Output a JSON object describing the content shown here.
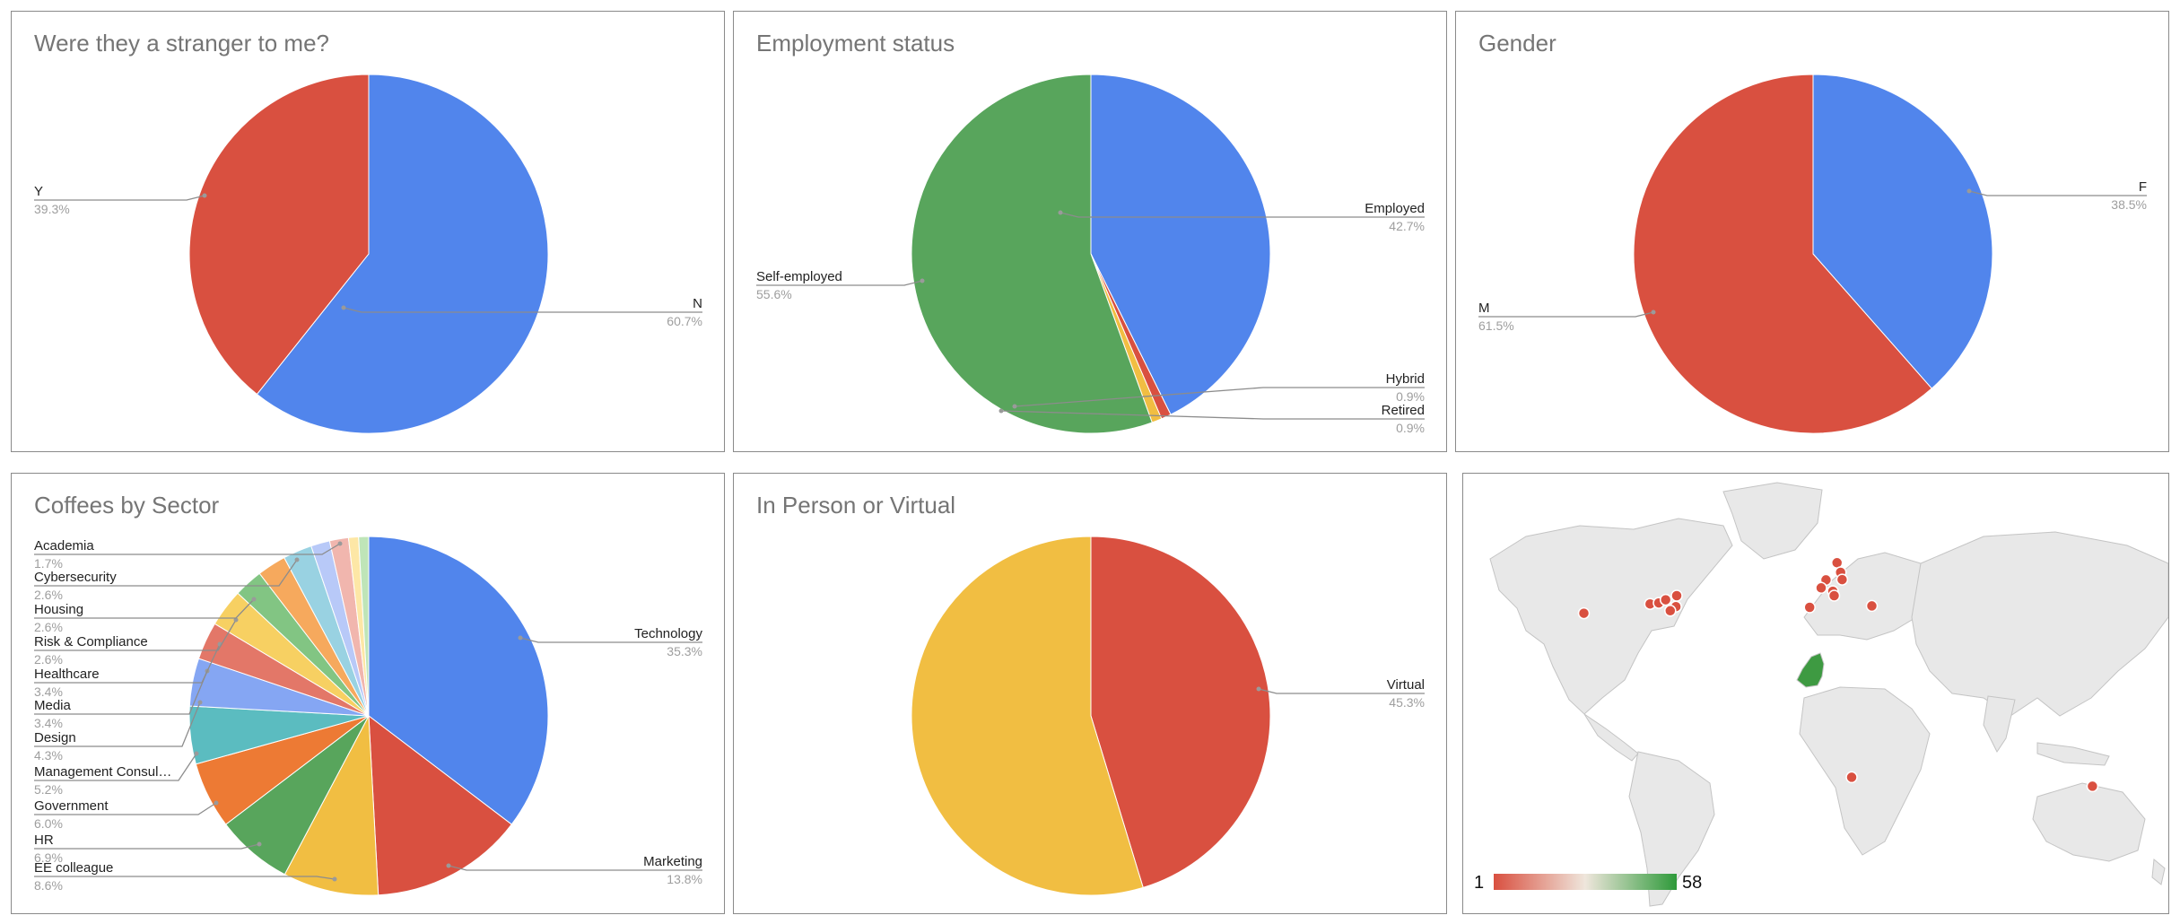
{
  "colors": {
    "blue": "#5185ec",
    "red": "#d95040",
    "yellow": "#f1be42",
    "green": "#58a55c",
    "orange": "#ed7a34",
    "teal": "#5bbcc0",
    "lightblue": "#85a6f3",
    "salmon": "#e37768",
    "gold": "#f7d062",
    "mint": "#82c583",
    "lightorange": "#f6a95d",
    "skyblue": "#99d2e2",
    "lavender": "#b8c9f8",
    "pink": "#f1b6ae",
    "paleyellow": "#fde7a6",
    "palegreen": "#bfe5b8"
  },
  "chart_data": [
    {
      "type": "pie",
      "title": "Were they a stranger to me?",
      "slices": [
        {
          "label": "N",
          "percent_label": "60.7%",
          "value": 60.7,
          "color": "#5185ec"
        },
        {
          "label": "Y",
          "percent_label": "39.3%",
          "value": 39.3,
          "color": "#d95040"
        }
      ]
    },
    {
      "type": "pie",
      "title": "Employment status",
      "slices": [
        {
          "label": "Employed",
          "percent_label": "42.7%",
          "value": 42.7,
          "color": "#5185ec"
        },
        {
          "label": "Hybrid",
          "percent_label": "0.9%",
          "value": 0.9,
          "color": "#d95040"
        },
        {
          "label": "Retired",
          "percent_label": "0.9%",
          "value": 0.9,
          "color": "#f1be42"
        },
        {
          "label": "Self-employed",
          "percent_label": "55.6%",
          "value": 55.6,
          "color": "#58a55c"
        }
      ]
    },
    {
      "type": "pie",
      "title": "Gender",
      "slices": [
        {
          "label": "F",
          "percent_label": "38.5%",
          "value": 38.5,
          "color": "#5185ec"
        },
        {
          "label": "M",
          "percent_label": "61.5%",
          "value": 61.5,
          "color": "#d95040"
        }
      ]
    },
    {
      "type": "pie",
      "title": "Coffees by Sector",
      "slices": [
        {
          "label": "Technology",
          "percent_label": "35.3%",
          "value": 35.3,
          "color": "#5185ec"
        },
        {
          "label": "Marketing",
          "percent_label": "13.8%",
          "value": 13.8,
          "color": "#d95040"
        },
        {
          "label": "EE colleague",
          "percent_label": "8.6%",
          "value": 8.6,
          "color": "#f1be42"
        },
        {
          "label": "HR",
          "percent_label": "6.9%",
          "value": 6.9,
          "color": "#58a55c"
        },
        {
          "label": "Government",
          "percent_label": "6.0%",
          "value": 6.0,
          "color": "#ed7a34"
        },
        {
          "label": "Management Consul…",
          "percent_label": "5.2%",
          "value": 5.2,
          "color": "#5bbcc0"
        },
        {
          "label": "Design",
          "percent_label": "4.3%",
          "value": 4.3,
          "color": "#85a6f3"
        },
        {
          "label": "Media",
          "percent_label": "3.4%",
          "value": 3.4,
          "color": "#e37768"
        },
        {
          "label": "Healthcare",
          "percent_label": "3.4%",
          "value": 3.4,
          "color": "#f7d062"
        },
        {
          "label": "Risk & Compliance",
          "percent_label": "2.6%",
          "value": 2.6,
          "color": "#82c583"
        },
        {
          "label": "Housing",
          "percent_label": "2.6%",
          "value": 2.6,
          "color": "#f6a95d"
        },
        {
          "label": "Cybersecurity",
          "percent_label": "2.6%",
          "value": 2.6,
          "color": "#99d2e2"
        },
        {
          "label": "Academia",
          "percent_label": "1.7%",
          "value": 1.7,
          "color": "#b8c9f8"
        },
        {
          "value": 1.7,
          "color": "#f1b6ae"
        },
        {
          "value": 0.9,
          "color": "#fde7a6"
        },
        {
          "value": 0.9,
          "color": "#bfe5b8"
        }
      ]
    },
    {
      "type": "pie",
      "title": "In Person or Virtual",
      "slices": [
        {
          "label": "Virtual",
          "percent_label": "45.3%",
          "value": 45.3,
          "color": "#d95040"
        },
        {
          "value": 54.7,
          "color": "#f1be42"
        }
      ]
    },
    {
      "type": "geo",
      "color_scale": {
        "min": 1,
        "max": 58,
        "min_label": "1",
        "max_label": "58",
        "colors": [
          "#d95040",
          "#efe6dc",
          "#2e9a3a"
        ]
      },
      "markers": [
        {
          "place": "California",
          "lon": -122.4,
          "lat": 37.8
        },
        {
          "place": "Chicago",
          "lon": -87.6,
          "lat": 41.9
        },
        {
          "place": "Detroit",
          "lon": -83.0,
          "lat": 42.3
        },
        {
          "place": "Toronto",
          "lon": -79.4,
          "lat": 43.7
        },
        {
          "place": "Montreal",
          "lon": -73.6,
          "lat": 45.5
        },
        {
          "place": "New York",
          "lon": -74.0,
          "lat": 40.7
        },
        {
          "place": "Washington",
          "lon": -77.0,
          "lat": 38.9
        },
        {
          "place": "Oslo",
          "lon": 10.7,
          "lat": 59.9
        },
        {
          "place": "Copenhagen",
          "lon": 12.6,
          "lat": 55.7
        },
        {
          "place": "Amsterdam",
          "lon": 4.9,
          "lat": 52.4
        },
        {
          "place": "Berlin",
          "lon": 13.4,
          "lat": 52.5
        },
        {
          "place": "Paris",
          "lon": 2.35,
          "lat": 48.9
        },
        {
          "place": "Zurich",
          "lon": 8.5,
          "lat": 47.4
        },
        {
          "place": "Milan",
          "lon": 9.2,
          "lat": 45.5
        },
        {
          "place": "Madrid",
          "lon": -3.7,
          "lat": 40.4
        },
        {
          "place": "Istanbul",
          "lon": 29.0,
          "lat": 41.0
        },
        {
          "place": "Cape Town",
          "lon": 18.4,
          "lat": -33.9
        },
        {
          "place": "Melbourne",
          "lon": 145.0,
          "lat": -37.8
        }
      ],
      "highlighted_region": {
        "name": "United Kingdom",
        "value": 58
      }
    }
  ]
}
